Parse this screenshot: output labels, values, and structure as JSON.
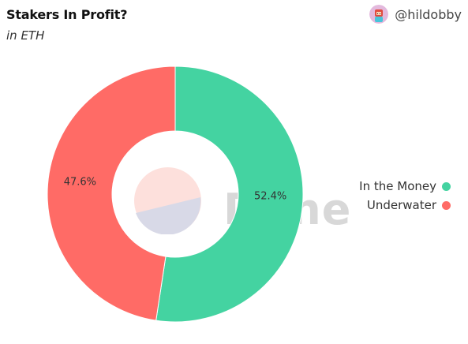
{
  "header": {
    "title": "Stakers In Profit?",
    "subtitle": "in ETH",
    "username": "@hildobby",
    "avatar_icon": "user-avatar-icon"
  },
  "watermark": {
    "text": "Dune",
    "icon": "dune-logo-icon"
  },
  "chart_data": {
    "type": "pie",
    "title": "Stakers In Profit?",
    "subtitle": "in ETH",
    "donut": true,
    "legend_position": "right",
    "series": [
      {
        "name": "In the Money",
        "value": 52.4,
        "label": "52.4%",
        "color": "#44d3a1"
      },
      {
        "name": "Underwater",
        "value": 47.6,
        "label": "47.6%",
        "color": "#ff6b66"
      }
    ]
  }
}
